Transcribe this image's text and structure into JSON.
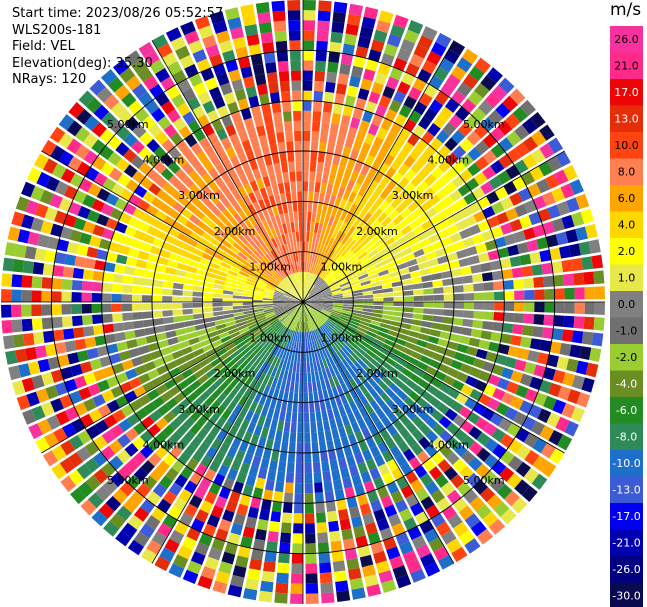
{
  "info": {
    "start_time": "Start time: 2023/08/26 05:52:57",
    "site": "WLS200s-181",
    "field": "Field: VEL",
    "elevation": "Elevation(deg): 35.30",
    "nrays": "NRays: 120"
  },
  "colorbar": {
    "unit": "m/s",
    "levels": [
      {
        "label": "26.0",
        "color": "#f7329f"
      },
      {
        "label": "21.0",
        "color": "#ff2a8a"
      },
      {
        "label": "17.0",
        "color": "#ee0606"
      },
      {
        "label": "13.0",
        "color": "#e62d09"
      },
      {
        "label": "10.0",
        "color": "#ff4411"
      },
      {
        "label": "8.0",
        "color": "#ff7f50"
      },
      {
        "label": "6.0",
        "color": "#ffa500"
      },
      {
        "label": "4.0",
        "color": "#ffd700"
      },
      {
        "label": "2.0",
        "color": "#ffff00"
      },
      {
        "label": "1.0",
        "color": "#e8e84a"
      },
      {
        "label": "0.0",
        "color": "#808080"
      },
      {
        "label": "-1.0",
        "color": "#707070"
      },
      {
        "label": "-2.0",
        "color": "#9acd32"
      },
      {
        "label": "-4.0",
        "color": "#6b8e23"
      },
      {
        "label": "-6.0",
        "color": "#228b22"
      },
      {
        "label": "-8.0",
        "color": "#2e8b57"
      },
      {
        "label": "-10.0",
        "color": "#1e6fc9"
      },
      {
        "label": "-13.0",
        "color": "#3c5bd6"
      },
      {
        "label": "-17.0",
        "color": "#0000ee"
      },
      {
        "label": "-21.0",
        "color": "#0000b0"
      },
      {
        "label": "-26.0",
        "color": "#000080"
      },
      {
        "label": "-30.0",
        "color": "#0a0a50"
      }
    ]
  },
  "chart_data": {
    "type": "heatmap",
    "subtype": "radar-ppi",
    "field": "VEL",
    "units": "m/s",
    "nrays": 120,
    "elevation_deg": 35.3,
    "range_rings_km": [
      1.0,
      2.0,
      3.0,
      4.0,
      5.0
    ],
    "range_ring_labels": [
      "1.00km",
      "2.00km",
      "3.00km",
      "4.00km",
      "5.00km"
    ],
    "max_range_km": 6.0,
    "spoke_angles_deg": [
      0,
      30,
      60,
      90,
      120,
      150,
      180,
      210,
      240,
      270,
      300,
      330
    ],
    "velocity_by_azimuth_sector": [
      {
        "sector": "north",
        "approx_velocity_ms": 10.0
      },
      {
        "sector": "north-east",
        "approx_velocity_ms": 4.0
      },
      {
        "sector": "east",
        "approx_velocity_ms": 0.0
      },
      {
        "sector": "south-east",
        "approx_velocity_ms": -8.0
      },
      {
        "sector": "south",
        "approx_velocity_ms": -10.0
      },
      {
        "sector": "south-west",
        "approx_velocity_ms": -6.0
      },
      {
        "sector": "west",
        "approx_velocity_ms": 1.0
      },
      {
        "sector": "north-west",
        "approx_velocity_ms": 8.0
      }
    ],
    "colorbar_ticks": [
      26.0,
      21.0,
      17.0,
      13.0,
      10.0,
      8.0,
      6.0,
      4.0,
      2.0,
      1.0,
      0.0,
      -1.0,
      -2.0,
      -4.0,
      -6.0,
      -8.0,
      -10.0,
      -13.0,
      -17.0,
      -21.0,
      -26.0,
      -30.0
    ],
    "noise_beyond_km": 3.6
  }
}
